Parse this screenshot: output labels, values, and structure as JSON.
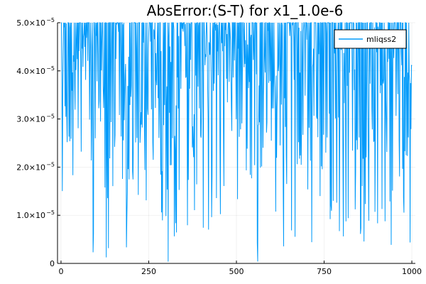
{
  "chart_data": {
    "type": "line",
    "title": "AbsError:(S-T) for x1_1.0e-6",
    "xlabel": "",
    "ylabel": "",
    "xlim": [
      -10,
      1010
    ],
    "ylim": [
      0,
      5e-05
    ],
    "x_ticks": [
      {
        "value": 0,
        "label": "0"
      },
      {
        "value": 250,
        "label": "250"
      },
      {
        "value": 500,
        "label": "500"
      },
      {
        "value": 750,
        "label": "750"
      },
      {
        "value": 1000,
        "label": "1000"
      }
    ],
    "y_ticks": [
      {
        "value": 0,
        "mantissa": "0",
        "exp": ""
      },
      {
        "value": 1e-05,
        "mantissa": "1.0×10",
        "exp": "−5"
      },
      {
        "value": 2e-05,
        "mantissa": "2.0×10",
        "exp": "−5"
      },
      {
        "value": 3e-05,
        "mantissa": "3.0×10",
        "exp": "−5"
      },
      {
        "value": 4e-05,
        "mantissa": "4.0×10",
        "exp": "−5"
      },
      {
        "value": 5e-05,
        "mantissa": "5.0×10",
        "exp": "−5"
      }
    ],
    "grid": true,
    "legend_position": "top-right",
    "series": [
      {
        "name": "mliqss2",
        "color": "#009AFA",
        "n_points": 800,
        "x_range": [
          0,
          1000
        ],
        "y_clip_max": 5e-05,
        "seed": 12345,
        "approx_final_value": 4.1e-05,
        "note": "dense oscillating noise spanning 0..5e-5 (many values clipped at the top)"
      }
    ]
  }
}
